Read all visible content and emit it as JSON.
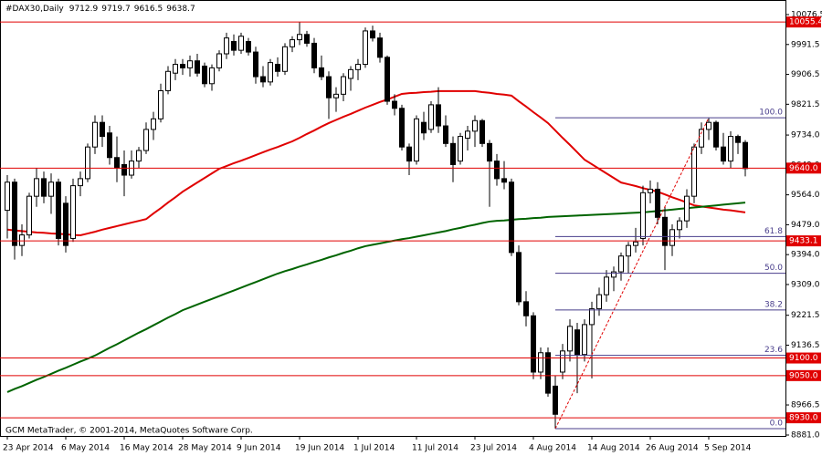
{
  "chart_data": {
    "type": "candlestick",
    "symbol": "#DAX30,Daily",
    "footer": "GCM MetaTrader, © 2001-2014, MetaQuotes Software Corp.",
    "categories": [
      "23 Apr 2014",
      null,
      null,
      null,
      null,
      null,
      null,
      null,
      "6 May 2014",
      null,
      null,
      null,
      null,
      null,
      null,
      null,
      "16 May 2014",
      null,
      null,
      null,
      null,
      null,
      null,
      null,
      "28 May 2014",
      null,
      null,
      null,
      null,
      null,
      null,
      null,
      "9 Jun 2014",
      null,
      null,
      null,
      null,
      null,
      null,
      null,
      "19 Jun 2014",
      null,
      null,
      null,
      null,
      null,
      null,
      null,
      "1 Jul 2014",
      null,
      null,
      null,
      null,
      null,
      null,
      null,
      "11 Jul 2014",
      null,
      null,
      null,
      null,
      null,
      null,
      null,
      "23 Jul 2014",
      null,
      null,
      null,
      null,
      null,
      null,
      null,
      "4 Aug 2014",
      null,
      null,
      null,
      null,
      null,
      null,
      null,
      "14 Aug 2014",
      null,
      null,
      null,
      null,
      null,
      null,
      null,
      "26 Aug 2014",
      null,
      null,
      null,
      null,
      null,
      null,
      null,
      "5 Sep 2014",
      null,
      null,
      null,
      null,
      null
    ],
    "open": [
      9520,
      9600,
      9420,
      9450,
      9560,
      9610,
      9560,
      9600,
      9540,
      9440,
      9590,
      9610,
      9700,
      9770,
      9740,
      9670,
      9650,
      9620,
      9660,
      9690,
      9750,
      9780,
      9860,
      9910,
      9935,
      9925,
      9945,
      9930,
      9880,
      9925,
      9965,
      10000,
      9975,
      10000,
      9970,
      9900,
      9885,
      9935,
      9915,
      9985,
      10005,
      10020,
      9995,
      9925,
      9900,
      9840,
      9850,
      9895,
      9920,
      9935,
      10030,
      10010,
      9955,
      9830,
      9810,
      9700,
      9660,
      9770,
      9750,
      9820,
      9760,
      9710,
      9660,
      9725,
      9745,
      9775,
      9710,
      9660,
      9610,
      9600,
      9400,
      9260,
      9220,
      9060,
      9115,
      9020,
      9060,
      9120,
      9180,
      9110,
      9195,
      9240,
      9280,
      9330,
      9345,
      9390,
      9420,
      9440,
      9570,
      9580,
      9500,
      9420,
      9465,
      9490,
      9560,
      9700,
      9750,
      9770,
      9700,
      9660,
      9730,
      9712.9
    ],
    "high": [
      9620,
      9610,
      9480,
      9570,
      9640,
      9630,
      9625,
      9610,
      9560,
      9610,
      9630,
      9710,
      9790,
      9790,
      9760,
      9730,
      9690,
      9690,
      9700,
      9770,
      9800,
      9880,
      9930,
      9950,
      9950,
      9960,
      9965,
      9940,
      9935,
      9975,
      10025,
      10020,
      10025,
      10010,
      9985,
      9930,
      9950,
      9955,
      9995,
      10015,
      10055,
      10030,
      10010,
      9960,
      9915,
      9870,
      9910,
      9930,
      9950,
      10040,
      10045,
      10025,
      9960,
      9850,
      9820,
      9710,
      9790,
      9800,
      9830,
      9870,
      9790,
      9730,
      9740,
      9760,
      9790,
      9780,
      9720,
      9680,
      9660,
      9610,
      9420,
      9290,
      9230,
      9130,
      9130,
      9050,
      9140,
      9210,
      9200,
      9210,
      9260,
      9300,
      9350,
      9360,
      9400,
      9430,
      9470,
      9590,
      9605,
      9600,
      9530,
      9480,
      9500,
      9580,
      9710,
      9770,
      9783,
      9775,
      9740,
      9745,
      9735,
      9719.7
    ],
    "low": [
      9440,
      9380,
      9390,
      9440,
      9530,
      9540,
      9510,
      9420,
      9400,
      9430,
      9560,
      9600,
      9680,
      9700,
      9650,
      9600,
      9560,
      9610,
      9640,
      9680,
      9720,
      9770,
      9850,
      9890,
      9905,
      9900,
      9900,
      9870,
      9860,
      9915,
      9950,
      9960,
      9965,
      9960,
      9880,
      9870,
      9875,
      9900,
      9905,
      9970,
      9990,
      9985,
      9910,
      9890,
      9780,
      9800,
      9830,
      9860,
      9890,
      9925,
      10000,
      9940,
      9820,
      9790,
      9690,
      9620,
      9650,
      9720,
      9740,
      9740,
      9700,
      9600,
      9650,
      9690,
      9700,
      9700,
      9530,
      9590,
      9580,
      9390,
      9250,
      9190,
      9040,
      9040,
      8990,
      8899,
      9040,
      9090,
      9000,
      9090,
      9042,
      9220,
      9260,
      9290,
      9320,
      9340,
      9400,
      9420,
      9540,
      9480,
      9350,
      9390,
      9440,
      9470,
      9540,
      9680,
      9720,
      9690,
      9650,
      9640,
      9680,
      9616.5
    ],
    "close": [
      9600,
      9420,
      9450,
      9560,
      9610,
      9560,
      9600,
      9440,
      9420,
      9590,
      9610,
      9700,
      9770,
      9730,
      9670,
      9640,
      9620,
      9660,
      9690,
      9750,
      9780,
      9860,
      9915,
      9935,
      9925,
      9945,
      9910,
      9880,
      9925,
      9965,
      10010,
      9975,
      10015,
      9970,
      9900,
      9885,
      9940,
      9915,
      9985,
      10005,
      10020,
      9995,
      9925,
      9900,
      9840,
      9850,
      9900,
      9920,
      9935,
      10030,
      10010,
      9955,
      9830,
      9810,
      9700,
      9660,
      9780,
      9740,
      9820,
      9760,
      9710,
      9650,
      9730,
      9745,
      9775,
      9710,
      9660,
      9610,
      9600,
      9400,
      9260,
      9220,
      9060,
      9115,
      9000,
      8940,
      9120,
      9190,
      9110,
      9195,
      9240,
      9280,
      9330,
      9345,
      9390,
      9420,
      9430,
      9570,
      9580,
      9500,
      9420,
      9465,
      9490,
      9560,
      9700,
      9750,
      9770,
      9700,
      9660,
      9730,
      9712.9,
      9638.7
    ],
    "moving_averages": [
      {
        "color": "#e00000",
        "values": [
          9465,
          9463,
          9461,
          9459,
          9457,
          9456,
          9454,
          9453,
          9452,
          9450,
          9449,
          9454,
          9459,
          9465,
          9470,
          9475,
          9480,
          9485,
          9490,
          9495,
          9511,
          9526,
          9542,
          9557,
          9573,
          9586,
          9599,
          9612,
          9625,
          9638,
          9646,
          9654,
          9661,
          9669,
          9677,
          9685,
          9693,
          9700,
          9708,
          9716,
          9726,
          9737,
          9747,
          9758,
          9768,
          9777,
          9786,
          9794,
          9803,
          9812,
          9820,
          9828,
          9835,
          9843,
          9851,
          9853,
          9854,
          9856,
          9857,
          9859,
          9859,
          9859,
          9859,
          9859,
          9859,
          9856,
          9854,
          9851,
          9849,
          9846,
          9830,
          9815,
          9799,
          9784,
          9768,
          9747,
          9726,
          9706,
          9685,
          9664,
          9651,
          9638,
          9625,
          9612,
          9599,
          9594,
          9589,
          9583,
          9578,
          9573,
          9565,
          9557,
          9550,
          9542,
          9534,
          9531,
          9528,
          9525,
          9522,
          9520,
          9517,
          9514
        ]
      },
      {
        "color": "#006400",
        "values": [
          9003,
          9012,
          9020,
          9029,
          9038,
          9046,
          9055,
          9064,
          9072,
          9081,
          9090,
          9098,
          9107,
          9118,
          9129,
          9139,
          9150,
          9161,
          9172,
          9182,
          9193,
          9204,
          9215,
          9225,
          9236,
          9244,
          9252,
          9260,
          9268,
          9276,
          9284,
          9292,
          9300,
          9308,
          9316,
          9324,
          9332,
          9340,
          9347,
          9353,
          9360,
          9366,
          9373,
          9379,
          9386,
          9392,
          9399,
          9405,
          9412,
          9418,
          9422,
          9426,
          9430,
          9434,
          9438,
          9441,
          9445,
          9449,
          9453,
          9457,
          9461,
          9466,
          9470,
          9475,
          9479,
          9484,
          9488,
          9490,
          9491,
          9493,
          9495,
          9496,
          9498,
          9499,
          9501,
          9502,
          9503,
          9504,
          9505,
          9506,
          9507,
          9508,
          9509,
          9510,
          9511,
          9512,
          9513,
          9514,
          9516,
          9518,
          9520,
          9522,
          9524,
          9526,
          9528,
          9530,
          9532,
          9534,
          9536,
          9538,
          9540,
          9542
        ]
      }
    ],
    "levels": [
      10055.4,
      {
        "value": 9640,
        "label": "9640.0"
      },
      9433.1,
      {
        "value": 9100,
        "label": "9100.0"
      },
      {
        "value": 9050,
        "label": "9050.0"
      },
      {
        "value": 8930,
        "label": "8930.0"
      }
    ],
    "fibonacci": [
      {
        "value": 100,
        "label": "100.0"
      },
      61.8,
      {
        "value": 50,
        "label": "50.0"
      },
      38.2,
      23.6,
      {
        "value": 0,
        "label": "0.0"
      }
    ],
    "ylim": [
      8881,
      10076.5
    ],
    "yticks": [
      10076.5,
      9991.5,
      9906.5,
      9821.5,
      {
        "value": 9734,
        "label": "9734.0"
      },
      {
        "value": 9649,
        "label": "9649.0"
      },
      {
        "value": 9564,
        "label": "9564.0"
      },
      {
        "value": 9479,
        "label": "9479.0"
      },
      {
        "value": 9394,
        "label": "9394.0"
      },
      {
        "value": 9309,
        "label": "9309.0"
      },
      9221.5,
      9136.5,
      {
        "value": 9051,
        "label": "9051.0"
      },
      8966.5,
      {
        "value": 8881,
        "label": "8881.0"
      }
    ],
    "colors": {
      "bull": "#ffffff",
      "bear": "#000000",
      "level": "#e00000",
      "fib": "#483d8b",
      "fib_trend": "#e00000"
    }
  }
}
